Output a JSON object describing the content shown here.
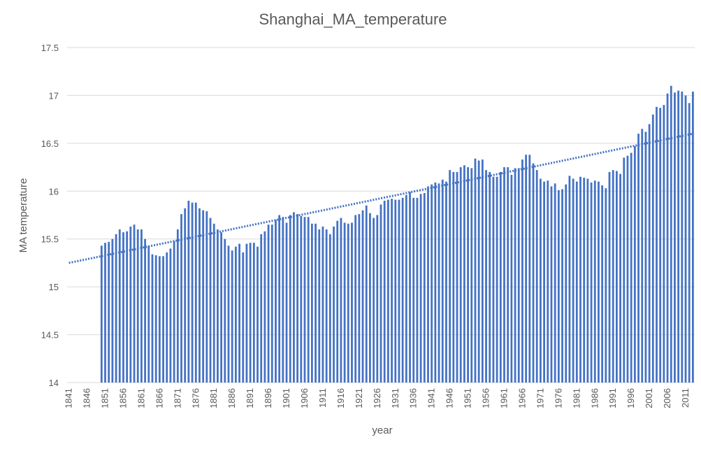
{
  "chart_data": {
    "type": "bar",
    "title": "Shanghai_MA_temperature",
    "x_label": "year",
    "y_label": "MA temperature",
    "color": "#4472c4",
    "grid": true,
    "ylim": [
      14,
      17.5
    ],
    "yticks": [
      14,
      14.5,
      15,
      15.5,
      16,
      16.5,
      17,
      17.5
    ],
    "trendline": {
      "color": "#4472c4",
      "values": [
        15.25,
        16.6
      ]
    },
    "categories": [
      "1841",
      null,
      null,
      null,
      null,
      "1846",
      null,
      null,
      null,
      null,
      "1851",
      null,
      null,
      null,
      null,
      "1856",
      null,
      null,
      null,
      null,
      "1861",
      null,
      null,
      null,
      null,
      "1866",
      null,
      null,
      null,
      null,
      "1871",
      null,
      null,
      null,
      null,
      "1876",
      null,
      null,
      null,
      null,
      "1881",
      null,
      null,
      null,
      null,
      "1886",
      null,
      null,
      null,
      null,
      "1891",
      null,
      null,
      null,
      null,
      "1896",
      null,
      null,
      null,
      null,
      "1901",
      null,
      null,
      null,
      null,
      "1906",
      null,
      null,
      null,
      null,
      "1911",
      null,
      null,
      null,
      null,
      "1916",
      null,
      null,
      null,
      null,
      "1921",
      null,
      null,
      null,
      null,
      "1926",
      null,
      null,
      null,
      null,
      "1931",
      null,
      null,
      null,
      null,
      "1936",
      null,
      null,
      null,
      null,
      "1941",
      null,
      null,
      null,
      null,
      "1946",
      null,
      null,
      null,
      null,
      "1951",
      null,
      null,
      null,
      null,
      "1956",
      null,
      null,
      null,
      null,
      "1961",
      null,
      null,
      null,
      null,
      "1966",
      null,
      null,
      null,
      null,
      "1971",
      null,
      null,
      null,
      null,
      "1976",
      null,
      null,
      null,
      null,
      "1981",
      null,
      null,
      null,
      null,
      "1986",
      null,
      null,
      null,
      null,
      "1991",
      null,
      null,
      null,
      null,
      "1996",
      null,
      null,
      null,
      null,
      "2001",
      null,
      null,
      null,
      null,
      "2006",
      null,
      null,
      null,
      null,
      "2011",
      null,
      null
    ],
    "values": [
      null,
      null,
      null,
      null,
      null,
      null,
      null,
      null,
      null,
      15.43,
      15.46,
      15.47,
      15.5,
      15.55,
      15.6,
      15.57,
      15.58,
      15.63,
      15.65,
      15.6,
      15.6,
      15.5,
      15.43,
      15.34,
      15.33,
      15.32,
      15.32,
      15.36,
      15.4,
      15.48,
      15.6,
      15.76,
      15.82,
      15.9,
      15.88,
      15.88,
      15.82,
      15.8,
      15.79,
      15.72,
      15.66,
      15.6,
      15.57,
      15.5,
      15.43,
      15.38,
      15.42,
      15.45,
      15.36,
      15.45,
      15.46,
      15.46,
      15.42,
      15.55,
      15.58,
      15.65,
      15.65,
      15.7,
      15.75,
      15.73,
      15.67,
      15.75,
      15.78,
      15.76,
      15.74,
      15.73,
      15.73,
      15.66,
      15.66,
      15.6,
      15.63,
      15.6,
      15.55,
      15.63,
      15.69,
      15.72,
      15.67,
      15.66,
      15.67,
      15.75,
      15.76,
      15.8,
      15.85,
      15.77,
      15.72,
      15.75,
      15.86,
      15.9,
      15.91,
      15.92,
      15.91,
      15.91,
      15.93,
      15.96,
      15.99,
      15.93,
      15.93,
      15.97,
      15.98,
      16.05,
      16.07,
      16.09,
      16.08,
      16.12,
      16.1,
      16.22,
      16.2,
      16.2,
      16.25,
      16.27,
      16.25,
      16.24,
      16.34,
      16.32,
      16.33,
      16.22,
      16.2,
      16.15,
      16.15,
      16.2,
      16.25,
      16.25,
      16.17,
      16.24,
      16.24,
      16.33,
      16.38,
      16.38,
      16.29,
      16.22,
      16.13,
      16.1,
      16.11,
      16.05,
      16.08,
      16.01,
      16.02,
      16.07,
      16.16,
      16.13,
      16.1,
      16.15,
      16.14,
      16.13,
      16.09,
      16.11,
      16.1,
      16.06,
      16.03,
      16.2,
      16.22,
      16.21,
      16.18,
      16.35,
      16.37,
      16.4,
      16.47,
      16.6,
      16.65,
      16.62,
      16.7,
      16.8,
      16.88,
      16.87,
      16.9,
      17.02,
      17.1,
      17.03,
      17.05,
      17.04,
      17.0,
      16.92,
      17.04
    ]
  }
}
